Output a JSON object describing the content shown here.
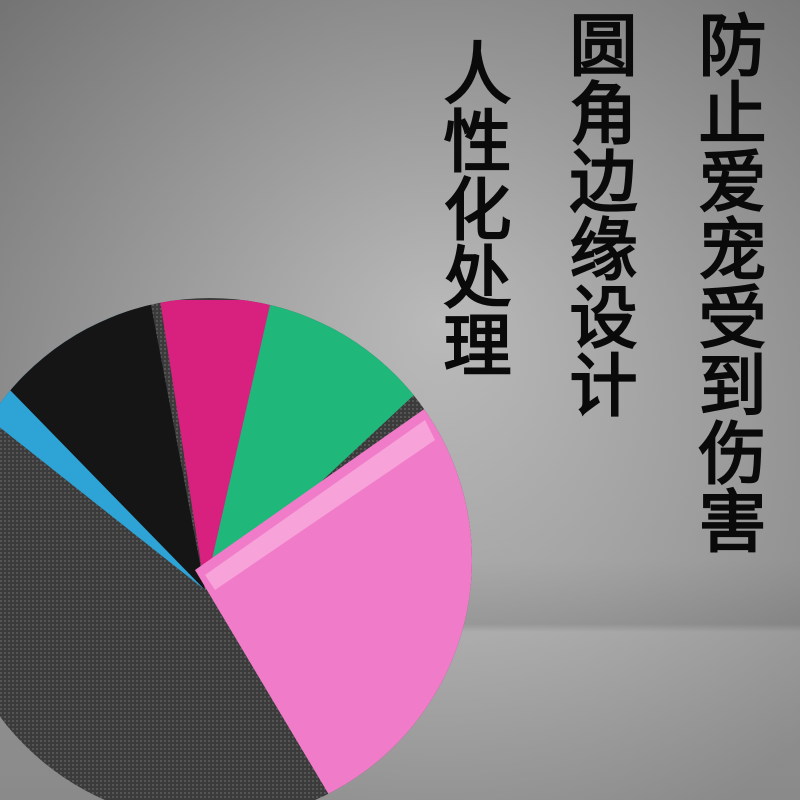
{
  "headline_columns": [
    {
      "text": "人性化处理"
    },
    {
      "text": "圆角边缘设计"
    },
    {
      "text": "防止爱宠受到伤害"
    }
  ],
  "colors": {
    "blue": "#2ea3d6",
    "black": "#141414",
    "magenta": "#d8207e",
    "green": "#1fb77a",
    "pink": "#f07bc8",
    "carpet": "#3a3a3a"
  }
}
